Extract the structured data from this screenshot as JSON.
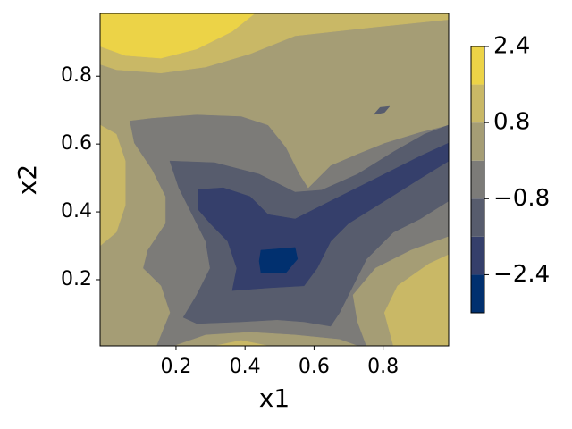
{
  "chart_data": {
    "type": "contour",
    "xlabel": "x1",
    "ylabel": "x2",
    "xlim": [
      -0.02,
      0.99
    ],
    "ylim": [
      0.005,
      0.985
    ],
    "xticks": [
      0.2,
      0.4,
      0.6,
      0.8
    ],
    "yticks": [
      0.2,
      0.4,
      0.6,
      0.8
    ],
    "levels": [
      -3.2,
      -2.4,
      -1.6,
      -0.8,
      0,
      0.8,
      1.6,
      2.4
    ],
    "colors": [
      "#01306f",
      "#353f6b",
      "#575c6d",
      "#7c7b78",
      "#a59d75",
      "#c9b866",
      "#ecd347"
    ],
    "colorbar_ticks": [
      {
        "value": -2.4,
        "label": "−2.4"
      },
      {
        "value": -0.8,
        "label": "−0.8"
      },
      0.8,
      2.4
    ],
    "regions": [
      {
        "level": -0.8,
        "points": [
          [
            -0.02,
            0.005
          ],
          [
            0.99,
            0.005
          ],
          [
            0.99,
            0.985
          ],
          [
            -0.02,
            0.985
          ]
        ]
      },
      {
        "level": 0,
        "points": [
          [
            -0.02,
            0.985
          ],
          [
            0.99,
            0.985
          ],
          [
            0.99,
            0.656
          ],
          [
            0.907,
            0.635
          ],
          [
            0.804,
            0.603
          ],
          [
            0.726,
            0.571
          ],
          [
            0.648,
            0.537
          ],
          [
            0.583,
            0.471
          ],
          [
            0.558,
            0.511
          ],
          [
            0.519,
            0.59
          ],
          [
            0.467,
            0.656
          ],
          [
            0.389,
            0.682
          ],
          [
            0.26,
            0.687
          ],
          [
            0.13,
            0.677
          ],
          [
            0.065,
            0.669
          ],
          [
            0.078,
            0.603
          ],
          [
            0.13,
            0.524
          ],
          [
            0.169,
            0.445
          ],
          [
            0.169,
            0.366
          ],
          [
            0.117,
            0.287
          ],
          [
            0.104,
            0.234
          ],
          [
            0.156,
            0.182
          ],
          [
            0.182,
            0.103
          ],
          [
            0.143,
            0.005
          ],
          [
            -0.02,
            0.005
          ]
        ]
      },
      {
        "level": 0,
        "points": [
          [
            0.195,
            0.005
          ],
          [
            0.286,
            0.037
          ],
          [
            0.415,
            0.045
          ],
          [
            0.545,
            0.037
          ],
          [
            0.674,
            0.024
          ],
          [
            0.726,
            0.005
          ]
        ]
      },
      {
        "level": 0,
        "points": [
          [
            0.752,
            0.005
          ],
          [
            0.726,
            0.076
          ],
          [
            0.713,
            0.155
          ],
          [
            0.778,
            0.234
          ],
          [
            0.881,
            0.287
          ],
          [
            0.99,
            0.327
          ],
          [
            0.99,
            0.005
          ]
        ]
      },
      {
        "level": 0.8,
        "points": [
          [
            -0.02,
            0.985
          ],
          [
            0.99,
            0.985
          ],
          [
            0.99,
            0.967
          ],
          [
            0.778,
            0.945
          ],
          [
            0.545,
            0.919
          ],
          [
            0.415,
            0.866
          ],
          [
            0.286,
            0.827
          ],
          [
            0.156,
            0.809
          ],
          [
            0.027,
            0.819
          ],
          [
            -0.02,
            0.835
          ]
        ]
      },
      {
        "level": 0.8,
        "points": [
          [
            -0.02,
            0.656
          ],
          [
            0.027,
            0.629
          ],
          [
            0.053,
            0.55
          ],
          [
            0.053,
            0.419
          ],
          [
            0.027,
            0.34
          ],
          [
            -0.02,
            0.3
          ]
        ]
      },
      {
        "level": 0.8,
        "points": [
          [
            0.312,
            0.005
          ],
          [
            0.389,
            0.021
          ],
          [
            0.467,
            0.005
          ]
        ]
      },
      {
        "level": 0.8,
        "points": [
          [
            0.83,
            0.005
          ],
          [
            0.804,
            0.103
          ],
          [
            0.842,
            0.182
          ],
          [
            0.933,
            0.247
          ],
          [
            0.99,
            0.274
          ],
          [
            0.99,
            0.005
          ]
        ]
      },
      {
        "level": 1.6,
        "points": [
          [
            -0.02,
            0.985
          ],
          [
            0.428,
            0.985
          ],
          [
            0.363,
            0.932
          ],
          [
            0.26,
            0.88
          ],
          [
            0.156,
            0.853
          ],
          [
            0.053,
            0.861
          ],
          [
            -0.02,
            0.888
          ]
        ]
      },
      {
        "level": -1.6,
        "points": [
          [
            0.182,
            0.55
          ],
          [
            0.312,
            0.545
          ],
          [
            0.441,
            0.511
          ],
          [
            0.545,
            0.458
          ],
          [
            0.622,
            0.464
          ],
          [
            0.726,
            0.511
          ],
          [
            0.83,
            0.577
          ],
          [
            0.92,
            0.629
          ],
          [
            0.99,
            0.656
          ],
          [
            0.99,
            0.432
          ],
          [
            0.907,
            0.379
          ],
          [
            0.83,
            0.34
          ],
          [
            0.752,
            0.261
          ],
          [
            0.713,
            0.182
          ],
          [
            0.674,
            0.103
          ],
          [
            0.648,
            0.063
          ],
          [
            0.571,
            0.076
          ],
          [
            0.493,
            0.082
          ],
          [
            0.389,
            0.076
          ],
          [
            0.26,
            0.071
          ],
          [
            0.221,
            0.089
          ],
          [
            0.26,
            0.155
          ],
          [
            0.299,
            0.234
          ],
          [
            0.286,
            0.313
          ],
          [
            0.247,
            0.392
          ],
          [
            0.208,
            0.471
          ]
        ]
      },
      {
        "level": -1.6,
        "points": [
          [
            0.773,
            0.687
          ],
          [
            0.791,
            0.708
          ],
          [
            0.819,
            0.711
          ],
          [
            0.804,
            0.693
          ]
        ]
      },
      {
        "level": -2.4,
        "points": [
          [
            0.265,
            0.466
          ],
          [
            0.337,
            0.471
          ],
          [
            0.415,
            0.445
          ],
          [
            0.467,
            0.392
          ],
          [
            0.545,
            0.379
          ],
          [
            0.648,
            0.432
          ],
          [
            0.778,
            0.498
          ],
          [
            0.907,
            0.564
          ],
          [
            0.99,
            0.603
          ],
          [
            0.99,
            0.55
          ],
          [
            0.907,
            0.498
          ],
          [
            0.804,
            0.432
          ],
          [
            0.7,
            0.366
          ],
          [
            0.648,
            0.313
          ],
          [
            0.609,
            0.234
          ],
          [
            0.571,
            0.182
          ],
          [
            0.467,
            0.176
          ],
          [
            0.363,
            0.168
          ],
          [
            0.376,
            0.234
          ],
          [
            0.35,
            0.313
          ],
          [
            0.299,
            0.366
          ],
          [
            0.265,
            0.406
          ]
        ]
      },
      {
        "level": -3.2,
        "points": [
          [
            0.446,
            0.287
          ],
          [
            0.545,
            0.295
          ],
          [
            0.552,
            0.261
          ],
          [
            0.519,
            0.221
          ],
          [
            0.446,
            0.221
          ],
          [
            0.441,
            0.255
          ]
        ]
      }
    ]
  }
}
